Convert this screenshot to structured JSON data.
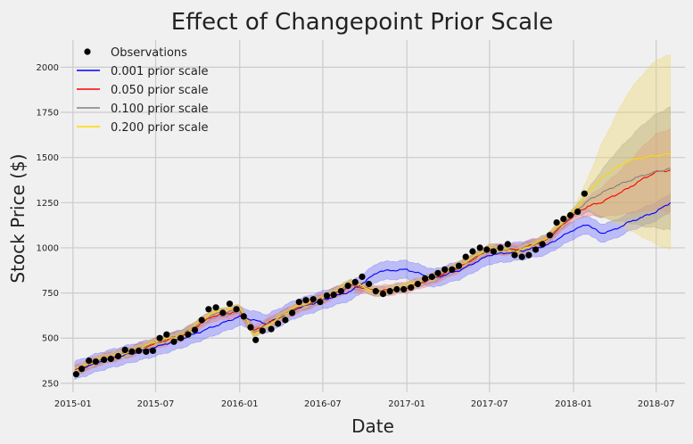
{
  "chart_data": {
    "type": "line",
    "title": "Effect of Changepoint Prior Scale",
    "xlabel": "Date",
    "ylabel": "Stock Price ($)",
    "xlim": [
      "2014-12-05",
      "2018-09-02"
    ],
    "ylim": [
      200,
      2150
    ],
    "x_ticks": [
      "2015-01",
      "2015-07",
      "2016-01",
      "2016-07",
      "2017-01",
      "2017-07",
      "2018-01",
      "2018-07"
    ],
    "y_ticks": [
      250,
      500,
      750,
      1000,
      1250,
      1500,
      1750,
      2000
    ],
    "grid": true,
    "legend_position": "top-left",
    "observations": {
      "name": "Observations",
      "color": "#000000",
      "x": [
        "2015-01-08",
        "2015-01-20",
        "2015-02-05",
        "2015-02-20",
        "2015-03-10",
        "2015-03-25",
        "2015-04-10",
        "2015-04-25",
        "2015-05-10",
        "2015-05-25",
        "2015-06-10",
        "2015-06-25",
        "2015-07-10",
        "2015-07-25",
        "2015-08-10",
        "2015-08-25",
        "2015-09-10",
        "2015-09-25",
        "2015-10-10",
        "2015-10-25",
        "2015-11-10",
        "2015-11-25",
        "2015-12-10",
        "2015-12-25",
        "2016-01-10",
        "2016-01-25",
        "2016-02-05",
        "2016-02-20",
        "2016-03-10",
        "2016-03-25",
        "2016-04-10",
        "2016-04-25",
        "2016-05-10",
        "2016-05-25",
        "2016-06-10",
        "2016-06-25",
        "2016-07-10",
        "2016-07-25",
        "2016-08-10",
        "2016-08-25",
        "2016-09-10",
        "2016-09-25",
        "2016-10-10",
        "2016-10-25",
        "2016-11-10",
        "2016-11-25",
        "2016-12-10",
        "2016-12-25",
        "2017-01-10",
        "2017-01-25",
        "2017-02-10",
        "2017-02-25",
        "2017-03-10",
        "2017-03-25",
        "2017-04-10",
        "2017-04-25",
        "2017-05-10",
        "2017-05-25",
        "2017-06-10",
        "2017-06-25",
        "2017-07-10",
        "2017-07-25",
        "2017-08-10",
        "2017-08-25",
        "2017-09-10",
        "2017-09-25",
        "2017-10-10",
        "2017-10-25",
        "2017-11-10",
        "2017-11-25",
        "2017-12-10",
        "2017-12-25",
        "2018-01-10",
        "2018-01-25"
      ],
      "y": [
        300,
        330,
        375,
        370,
        380,
        385,
        400,
        435,
        425,
        430,
        425,
        430,
        500,
        520,
        480,
        500,
        520,
        545,
        600,
        660,
        670,
        640,
        690,
        660,
        620,
        560,
        490,
        540,
        550,
        580,
        600,
        640,
        700,
        710,
        715,
        700,
        735,
        740,
        760,
        790,
        810,
        840,
        800,
        760,
        745,
        760,
        770,
        770,
        780,
        800,
        830,
        840,
        860,
        880,
        880,
        900,
        950,
        980,
        1000,
        990,
        980,
        1000,
        1020,
        960,
        950,
        960,
        990,
        1020,
        1070,
        1140,
        1160,
        1180,
        1200,
        1300
      ]
    },
    "series": [
      {
        "name": "0.001 prior scale",
        "color": "#0000ff",
        "band_color": "#6666ff",
        "x": [
          "2015-01-05",
          "2015-03-01",
          "2015-05-01",
          "2015-07-01",
          "2015-09-01",
          "2015-11-01",
          "2016-01-01",
          "2016-03-01",
          "2016-05-01",
          "2016-07-01",
          "2016-09-01",
          "2016-11-01",
          "2017-01-01",
          "2017-03-01",
          "2017-05-01",
          "2017-07-01",
          "2017-09-01",
          "2017-11-01",
          "2018-01-01",
          "2018-02-01",
          "2018-03-01",
          "2018-04-01",
          "2018-05-01",
          "2018-06-01",
          "2018-07-01",
          "2018-08-01"
        ],
        "y": [
          320,
          370,
          410,
          450,
          500,
          560,
          620,
          580,
          660,
          710,
          760,
          870,
          880,
          830,
          880,
          960,
          980,
          1010,
          1100,
          1130,
          1080,
          1100,
          1140,
          1170,
          1200,
          1250
        ],
        "lower": [
          270,
          320,
          360,
          400,
          450,
          510,
          570,
          530,
          610,
          660,
          710,
          820,
          830,
          780,
          830,
          910,
          930,
          960,
          1050,
          1080,
          1030,
          1050,
          1090,
          1120,
          1150,
          1200
        ],
        "upper": [
          370,
          420,
          460,
          500,
          550,
          610,
          670,
          630,
          710,
          760,
          810,
          920,
          930,
          880,
          930,
          1010,
          1030,
          1060,
          1150,
          1180,
          1130,
          1150,
          1190,
          1220,
          1250,
          1300
        ]
      },
      {
        "name": "0.050 prior scale",
        "color": "#ff0000",
        "band_color": "#ff7777",
        "x": [
          "2015-01-05",
          "2015-03-01",
          "2015-05-01",
          "2015-07-01",
          "2015-09-01",
          "2015-11-01",
          "2016-01-01",
          "2016-02-01",
          "2016-03-01",
          "2016-05-01",
          "2016-07-01",
          "2016-09-01",
          "2016-11-01",
          "2017-01-01",
          "2017-03-01",
          "2017-05-01",
          "2017-07-01",
          "2017-09-01",
          "2017-11-01",
          "2018-01-01",
          "2018-02-01",
          "2018-03-01",
          "2018-04-01",
          "2018-05-01",
          "2018-06-01",
          "2018-07-01",
          "2018-08-01"
        ],
        "y": [
          320,
          380,
          420,
          470,
          520,
          620,
          650,
          540,
          580,
          660,
          720,
          790,
          760,
          780,
          830,
          900,
          990,
          990,
          1040,
          1180,
          1230,
          1250,
          1290,
          1330,
          1380,
          1420,
          1430
        ],
        "lower": [
          290,
          350,
          390,
          440,
          490,
          590,
          620,
          510,
          550,
          630,
          690,
          760,
          730,
          750,
          800,
          870,
          960,
          960,
          1010,
          1150,
          1180,
          1170,
          1180,
          1190,
          1200,
          1210,
          1200
        ],
        "upper": [
          350,
          410,
          450,
          500,
          550,
          650,
          680,
          570,
          610,
          690,
          750,
          820,
          790,
          810,
          860,
          930,
          1020,
          1020,
          1070,
          1210,
          1280,
          1330,
          1400,
          1470,
          1560,
          1630,
          1660
        ]
      },
      {
        "name": "0.100 prior scale",
        "color": "#808080",
        "band_color": "#8c8c8c",
        "x": [
          "2015-01-05",
          "2015-03-01",
          "2015-05-01",
          "2015-07-01",
          "2015-09-01",
          "2015-11-01",
          "2016-01-01",
          "2016-02-01",
          "2016-03-01",
          "2016-05-01",
          "2016-07-01",
          "2016-09-01",
          "2016-11-01",
          "2017-01-01",
          "2017-03-01",
          "2017-05-01",
          "2017-07-01",
          "2017-09-01",
          "2017-11-01",
          "2018-01-01",
          "2018-02-01",
          "2018-03-01",
          "2018-04-01",
          "2018-05-01",
          "2018-06-01",
          "2018-07-01",
          "2018-08-01"
        ],
        "y": [
          320,
          380,
          420,
          475,
          525,
          630,
          660,
          530,
          575,
          665,
          720,
          800,
          755,
          785,
          835,
          905,
          995,
          985,
          1045,
          1190,
          1260,
          1300,
          1340,
          1370,
          1400,
          1420,
          1440
        ],
        "lower": [
          295,
          355,
          395,
          450,
          500,
          605,
          635,
          505,
          550,
          640,
          695,
          775,
          730,
          760,
          810,
          880,
          970,
          960,
          1020,
          1165,
          1200,
          1170,
          1150,
          1140,
          1120,
          1110,
          1100
        ],
        "upper": [
          345,
          405,
          445,
          500,
          550,
          655,
          685,
          555,
          600,
          690,
          745,
          825,
          780,
          810,
          860,
          930,
          1020,
          1010,
          1070,
          1215,
          1320,
          1420,
          1520,
          1600,
          1680,
          1740,
          1780
        ]
      },
      {
        "name": "0.200 prior scale",
        "color": "#ffd700",
        "band_color": "#ecd56a",
        "x": [
          "2015-01-05",
          "2015-03-01",
          "2015-05-01",
          "2015-07-01",
          "2015-09-01",
          "2015-11-01",
          "2016-01-01",
          "2016-02-01",
          "2016-03-01",
          "2016-05-01",
          "2016-07-01",
          "2016-09-01",
          "2016-11-01",
          "2017-01-01",
          "2017-03-01",
          "2017-05-01",
          "2017-07-01",
          "2017-09-01",
          "2017-11-01",
          "2018-01-01",
          "2018-02-01",
          "2018-03-01",
          "2018-04-01",
          "2018-05-01",
          "2018-06-01",
          "2018-07-01",
          "2018-08-01"
        ],
        "y": [
          320,
          385,
          420,
          480,
          520,
          640,
          670,
          520,
          570,
          670,
          720,
          810,
          750,
          790,
          840,
          910,
          1000,
          980,
          1050,
          1200,
          1300,
          1380,
          1440,
          1480,
          1500,
          1510,
          1520
        ],
        "lower": [
          300,
          365,
          400,
          460,
          500,
          620,
          650,
          500,
          550,
          650,
          700,
          790,
          730,
          770,
          820,
          890,
          980,
          960,
          1030,
          1180,
          1220,
          1180,
          1140,
          1100,
          1060,
          1020,
          990
        ],
        "upper": [
          340,
          405,
          440,
          500,
          540,
          660,
          690,
          540,
          590,
          690,
          740,
          830,
          770,
          810,
          860,
          930,
          1020,
          1000,
          1070,
          1220,
          1380,
          1560,
          1720,
          1860,
          1960,
          2040,
          2070
        ]
      }
    ]
  }
}
